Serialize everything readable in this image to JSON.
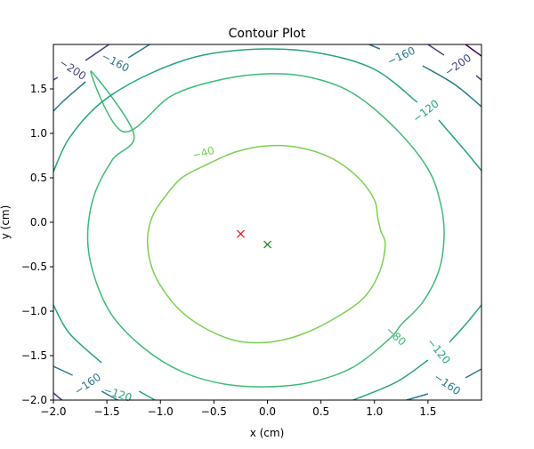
{
  "chart_data": {
    "type": "contour",
    "title": "Contour Plot",
    "xlabel": "x (cm)",
    "ylabel": "y (cm)",
    "xlim": [
      -2.0,
      2.0
    ],
    "ylim": [
      -2.0,
      2.0
    ],
    "x_ticks": [
      {
        "value": -2.0,
        "label": "−2.0"
      },
      {
        "value": -1.5,
        "label": "−1.5"
      },
      {
        "value": -1.0,
        "label": "−1.0"
      },
      {
        "value": -0.5,
        "label": "−0.5"
      },
      {
        "value": 0.0,
        "label": "0.0"
      },
      {
        "value": 0.5,
        "label": "0.5"
      },
      {
        "value": 1.0,
        "label": "1.0"
      },
      {
        "value": 1.5,
        "label": "1.5"
      }
    ],
    "y_ticks": [
      {
        "value": -2.0,
        "label": "−2.0"
      },
      {
        "value": -1.5,
        "label": "−1.5"
      },
      {
        "value": -1.0,
        "label": "−1.0"
      },
      {
        "value": -0.5,
        "label": "−0.5"
      },
      {
        "value": 0.0,
        "label": "0.0"
      },
      {
        "value": 0.5,
        "label": "0.5"
      },
      {
        "value": 1.0,
        "label": "1.0"
      },
      {
        "value": 1.5,
        "label": "1.5"
      }
    ],
    "grid": false,
    "levels": [
      {
        "level": -40,
        "label": "−40",
        "color": "#7ad151",
        "points": [
          [
            -0.3,
            0.79
          ],
          [
            0.0,
            0.86
          ],
          [
            0.3,
            0.84
          ],
          [
            0.6,
            0.72
          ],
          [
            0.85,
            0.5
          ],
          [
            1.0,
            0.25
          ],
          [
            1.03,
            0.05
          ],
          [
            1.06,
            -0.1
          ],
          [
            1.1,
            -0.25
          ],
          [
            1.05,
            -0.55
          ],
          [
            0.9,
            -0.85
          ],
          [
            0.6,
            -1.1
          ],
          [
            0.3,
            -1.27
          ],
          [
            0.0,
            -1.35
          ],
          [
            -0.3,
            -1.33
          ],
          [
            -0.6,
            -1.18
          ],
          [
            -0.85,
            -0.95
          ],
          [
            -1.05,
            -0.6
          ],
          [
            -1.12,
            -0.25
          ],
          [
            -1.08,
            0.05
          ],
          [
            -0.95,
            0.3
          ],
          [
            -0.8,
            0.5
          ],
          [
            -0.6,
            0.63
          ]
        ],
        "closed": true,
        "labels": [
          {
            "x": -0.6,
            "y": 0.78,
            "rotation": -15
          }
        ]
      },
      {
        "level": -80,
        "label": "−80",
        "color": "#3cbb75",
        "points": [
          [
            -1.65,
            1.7
          ],
          [
            -1.35,
            1.02
          ],
          [
            -0.9,
            1.42
          ],
          [
            -0.45,
            1.6
          ],
          [
            0.0,
            1.67
          ],
          [
            0.4,
            1.63
          ],
          [
            0.8,
            1.45
          ],
          [
            1.2,
            1.05
          ],
          [
            1.5,
            0.6
          ],
          [
            1.62,
            0.2
          ],
          [
            1.65,
            -0.17
          ],
          [
            1.6,
            -0.55
          ],
          [
            1.45,
            -0.9
          ],
          [
            1.25,
            -1.15
          ],
          [
            1.15,
            -1.3
          ],
          [
            0.8,
            -1.63
          ],
          [
            0.4,
            -1.8
          ],
          [
            0.0,
            -1.85
          ],
          [
            -0.4,
            -1.82
          ],
          [
            -0.8,
            -1.68
          ],
          [
            -1.15,
            -1.42
          ],
          [
            -1.45,
            -1.05
          ],
          [
            -1.62,
            -0.6
          ],
          [
            -1.68,
            -0.17
          ],
          [
            -1.62,
            0.3
          ],
          [
            -1.45,
            0.7
          ],
          [
            -1.25,
            1.0
          ]
        ],
        "closed": true,
        "labels": [
          {
            "x": 1.2,
            "y": -1.28,
            "rotation": 42
          }
        ]
      },
      {
        "level": -120,
        "label": "−120",
        "color": "#23a383",
        "segments": [
          [
            [
              -2.0,
              0.57
            ],
            [
              -1.85,
              0.95
            ],
            [
              -1.55,
              1.35
            ],
            [
              -1.1,
              1.67
            ],
            [
              -0.6,
              1.88
            ],
            [
              0.0,
              1.95
            ],
            [
              0.5,
              1.9
            ],
            [
              1.0,
              1.72
            ],
            [
              1.4,
              1.35
            ]
          ],
          [
            [
              1.6,
              1.15
            ],
            [
              1.85,
              0.8
            ],
            [
              2.0,
              0.58
            ]
          ],
          [
            [
              2.0,
              -0.93
            ],
            [
              1.85,
              -1.15
            ],
            [
              1.7,
              -1.35
            ]
          ],
          [
            [
              1.5,
              -1.55
            ],
            [
              1.2,
              -1.8
            ],
            [
              0.8,
              -2.0
            ]
          ],
          [
            [
              -1.05,
              -2.0
            ],
            [
              -1.2,
              -1.9
            ]
          ],
          [
            [
              -1.55,
              -1.58
            ],
            [
              -1.85,
              -1.25
            ],
            [
              -2.0,
              -0.93
            ]
          ]
        ],
        "labels": [
          {
            "x": 1.48,
            "y": 1.25,
            "rotation": -38
          },
          {
            "x": 1.6,
            "y": -1.45,
            "rotation": 50
          },
          {
            "x": -1.4,
            "y": -1.93,
            "rotation": 18
          }
        ]
      },
      {
        "level": -160,
        "label": "−160",
        "color": "#2a788e",
        "segments": [
          [
            [
              -2.0,
              1.25
            ],
            [
              -1.9,
              1.37
            ],
            [
              -1.7,
              1.58
            ]
          ],
          [
            [
              -1.3,
              1.85
            ],
            [
              -1.1,
              2.0
            ]
          ],
          [
            [
              0.95,
              2.0
            ],
            [
              1.05,
              1.95
            ]
          ],
          [
            [
              1.45,
              1.76
            ],
            [
              1.75,
              1.55
            ],
            [
              2.0,
              1.3
            ]
          ],
          [
            [
              2.0,
              -1.65
            ],
            [
              1.85,
              -1.75
            ]
          ],
          [
            [
              1.5,
              -1.93
            ],
            [
              1.3,
              -2.0
            ]
          ],
          [
            [
              -1.4,
              -2.0
            ],
            [
              -1.55,
              -1.9
            ]
          ],
          [
            [
              -1.82,
              -1.72
            ],
            [
              -2.0,
              -1.62
            ]
          ]
        ],
        "labels": [
          {
            "x": -1.42,
            "y": 1.8,
            "rotation": 28
          },
          {
            "x": 1.25,
            "y": 1.87,
            "rotation": -25
          },
          {
            "x": 1.68,
            "y": -1.82,
            "rotation": 35
          },
          {
            "x": -1.68,
            "y": -1.82,
            "rotation": -35
          }
        ]
      },
      {
        "level": -200,
        "label": "−200",
        "color": "#414487",
        "segments": [
          [
            [
              -2.0,
              1.6
            ],
            [
              -1.96,
              1.63
            ]
          ],
          [
            [
              -1.7,
              1.82
            ],
            [
              -1.48,
              2.0
            ]
          ],
          [
            [
              1.5,
              2.0
            ],
            [
              1.65,
              1.88
            ]
          ],
          [
            [
              1.95,
              1.65
            ],
            [
              2.0,
              1.6
            ]
          ],
          [
            [
              -2.0,
              -1.92
            ],
            [
              -1.92,
              -2.0
            ]
          ]
        ],
        "labels": [
          {
            "x": -1.82,
            "y": 1.72,
            "rotation": 33
          },
          {
            "x": 1.78,
            "y": 1.77,
            "rotation": -35
          }
        ]
      },
      {
        "level": -240,
        "label": "",
        "color": "#440154",
        "segments": [
          [
            [
              1.85,
              2.0
            ],
            [
              2.0,
              1.87
            ]
          ]
        ],
        "labels": []
      }
    ],
    "markers": [
      {
        "x": -0.25,
        "y": -0.13,
        "symbol": "x",
        "color": "#ff0000"
      },
      {
        "x": 0.0,
        "y": -0.25,
        "symbol": "x",
        "color": "#008000"
      }
    ]
  }
}
